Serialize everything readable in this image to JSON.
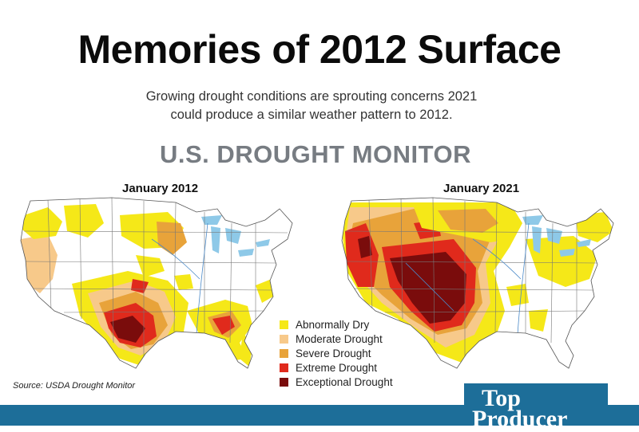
{
  "title": "Memories of 2012 Surface",
  "subtitle": {
    "line1": "Growing drought conditions are sprouting concerns 2021",
    "line2": "could produce a similar weather pattern to 2012."
  },
  "section_title": "U.S. DROUGHT MONITOR",
  "maps": [
    {
      "label": "January 2012"
    },
    {
      "label": "January 2021"
    }
  ],
  "legend": [
    {
      "label": "Abnormally Dry",
      "color": "#f5e818"
    },
    {
      "label": "Moderate Drought",
      "color": "#f7c98a"
    },
    {
      "label": "Severe Drought",
      "color": "#e8a33a"
    },
    {
      "label": "Extreme Drought",
      "color": "#e02a1c"
    },
    {
      "label": "Exceptional Drought",
      "color": "#7a0c0c"
    }
  ],
  "source": "Source: USDA Drought Monitor",
  "brand": {
    "line1": "Top",
    "line2": "Producer",
    "color": "#1d6e99"
  },
  "colors": {
    "lake": "#8ec9e8",
    "land": "#ffffff",
    "border": "#555555"
  }
}
